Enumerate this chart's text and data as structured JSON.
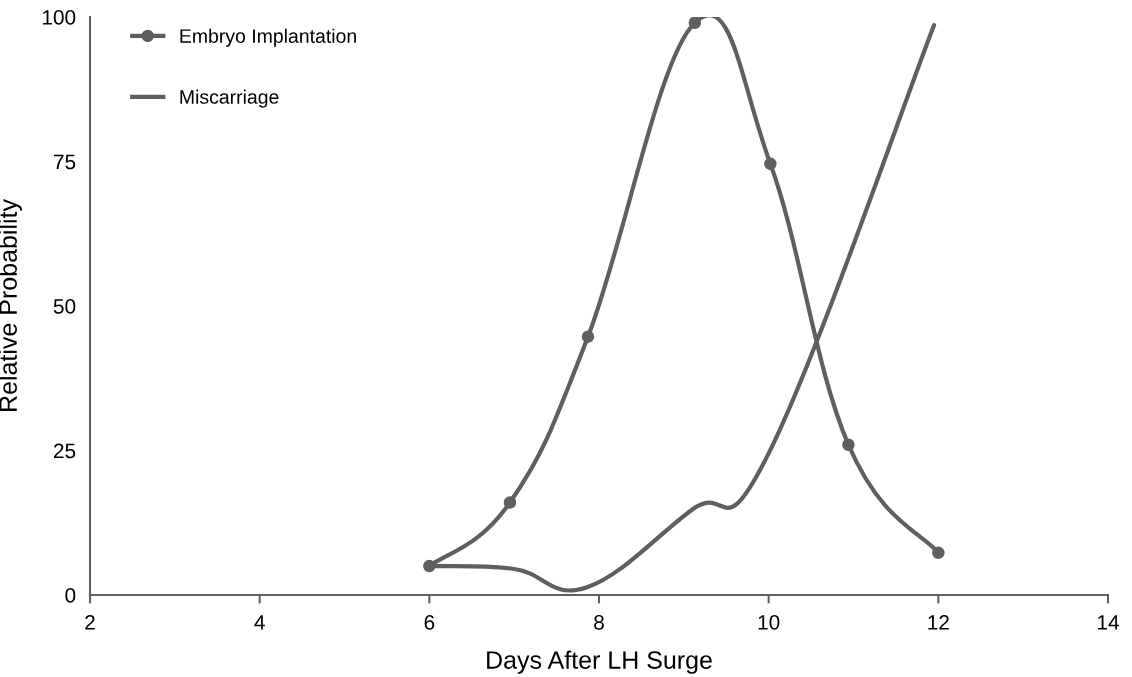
{
  "chart_data": {
    "type": "line",
    "xlabel": "Days After LH Surge",
    "ylabel": "Relative Probability",
    "xlim": [
      2,
      14
    ],
    "xticks": [
      2,
      4,
      6,
      8,
      10,
      12,
      14
    ],
    "ylim": [
      0,
      100
    ],
    "yticks": [
      0,
      25,
      50,
      75,
      100
    ],
    "grid": false,
    "legend": "top left",
    "line_style": "solid",
    "series": [
      {
        "name": "Embryo Implantation",
        "color": "#5f5f5f",
        "marker": "circle",
        "x": [
          6,
          6.95,
          7.87,
          9.13,
          10.02,
          10.94,
          12.0
        ],
        "values": [
          5,
          16,
          44.7,
          99,
          74.6,
          26,
          7.3
        ]
      },
      {
        "name": "Miscarriage",
        "color": "#5f5f5f",
        "marker": "none",
        "x": [
          6,
          7,
          7.85,
          9.1,
          10,
          11.95
        ],
        "values": [
          5,
          4.5,
          1.3,
          14.8,
          24.5,
          98.6
        ]
      }
    ]
  }
}
